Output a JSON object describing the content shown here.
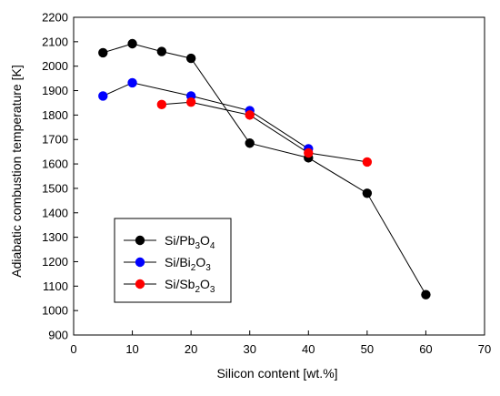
{
  "chart_data": {
    "type": "line",
    "xlabel": "Silicon content [wt.%]",
    "ylabel": "Adiabatic combustion temperature [K]",
    "xlim": [
      0,
      70
    ],
    "ylim": [
      900,
      2200
    ],
    "xticks": [
      0,
      10,
      20,
      30,
      40,
      50,
      60,
      70
    ],
    "yticks": [
      900,
      1000,
      1100,
      1200,
      1300,
      1400,
      1500,
      1600,
      1700,
      1800,
      1900,
      2000,
      2100,
      2200
    ],
    "grid": false,
    "legend_position": "bottom-left",
    "series": [
      {
        "base": "Si/Pb",
        "sub1": "3",
        "mid": "O",
        "sub2": "4",
        "color": "#000000",
        "x": [
          5,
          10,
          15,
          20,
          30,
          40,
          50,
          60
        ],
        "y": [
          2055,
          2092,
          2060,
          2032,
          1685,
          1625,
          1480,
          1065
        ]
      },
      {
        "base": "Si/Bi",
        "sub1": "2",
        "mid": "O",
        "sub2": "3",
        "color": "#0000ff",
        "x": [
          5,
          10,
          20,
          30,
          40
        ],
        "y": [
          1878,
          1932,
          1878,
          1818,
          1662
        ]
      },
      {
        "base": "Si/Sb",
        "sub1": "2",
        "mid": "O",
        "sub2": "3",
        "color": "#ff0000",
        "x": [
          15,
          20,
          30,
          40,
          50
        ],
        "y": [
          1843,
          1853,
          1800,
          1645,
          1608
        ]
      }
    ]
  }
}
